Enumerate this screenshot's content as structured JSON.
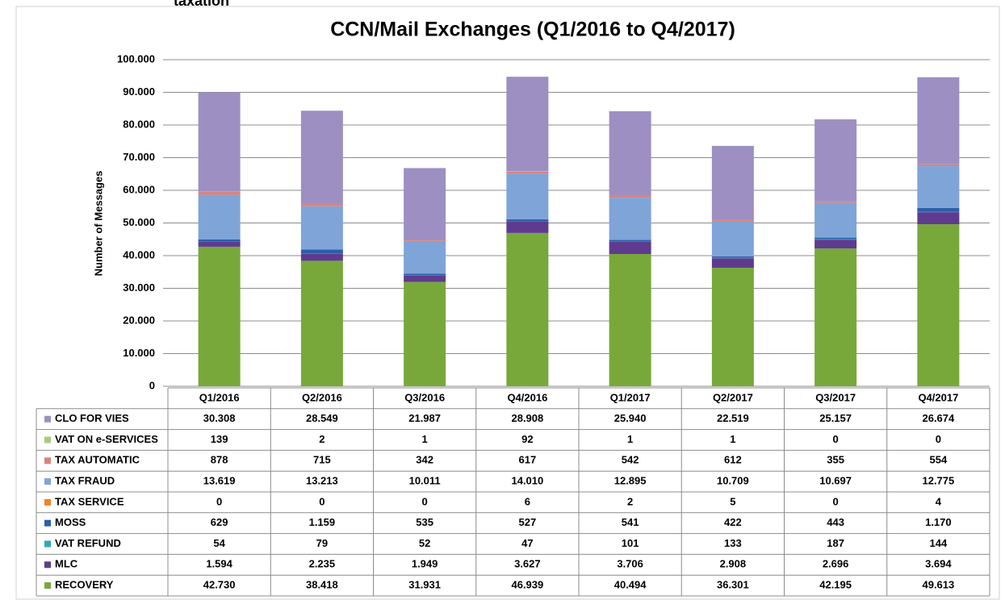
{
  "fragment": "taxation",
  "chart_data": {
    "type": "stacked_bar",
    "title": "CCN/Mail Exchanges (Q1/2016 to Q4/2017)",
    "y_label": "Number of Messages",
    "categories": [
      "Q1/2016",
      "Q2/2016",
      "Q3/2016",
      "Q4/2016",
      "Q1/2017",
      "Q2/2017",
      "Q3/2017",
      "Q4/2017"
    ],
    "ylim": [
      0,
      100000
    ],
    "yticks": [
      0,
      {
        "value": 10000,
        "label": "10.000"
      },
      {
        "value": 20000,
        "label": "20.000"
      },
      {
        "value": 30000,
        "label": "30.000"
      },
      {
        "value": 40000,
        "label": "40.000"
      },
      {
        "value": 50000,
        "label": "50.000"
      },
      {
        "value": 60000,
        "label": "60.000"
      },
      {
        "value": 70000,
        "label": "70.000"
      },
      {
        "value": 80000,
        "label": "80.000"
      },
      {
        "value": 90000,
        "label": "90.000"
      },
      {
        "value": 100000,
        "label": "100.000"
      }
    ],
    "grid": true,
    "series": [
      {
        "name": "CLO FOR VIES",
        "color": "#9d8fc2",
        "values": [
          30308,
          28549,
          21987,
          28908,
          25940,
          22519,
          25157,
          26674
        ],
        "value_labels": [
          "30.308",
          "28.549",
          "21.987",
          "28.908",
          "25.940",
          "22.519",
          "25.157",
          "26.674"
        ]
      },
      {
        "name": "VAT ON e-SERVICES",
        "color": "#a8cb7c",
        "values": [
          139,
          2,
          1,
          92,
          1,
          1,
          0,
          0
        ],
        "value_labels": [
          "139",
          "2",
          "1",
          "92",
          "1",
          "1",
          "0",
          "0"
        ]
      },
      {
        "name": "TAX AUTOMATIC",
        "color": "#da827f",
        "values": [
          878,
          715,
          342,
          617,
          542,
          612,
          355,
          554
        ],
        "value_labels": [
          "878",
          "715",
          "342",
          "617",
          "542",
          "612",
          "355",
          "554"
        ]
      },
      {
        "name": "TAX FRAUD",
        "color": "#7fa4d8",
        "values": [
          13619,
          13213,
          10011,
          14010,
          12895,
          10709,
          10697,
          12775
        ],
        "value_labels": [
          "13.619",
          "13.213",
          "10.011",
          "14.010",
          "12.895",
          "10.709",
          "10.697",
          "12.775"
        ]
      },
      {
        "name": "TAX SERVICE",
        "color": "#f0822a",
        "values": [
          0,
          0,
          0,
          6,
          2,
          5,
          0,
          4
        ],
        "value_labels": [
          "0",
          "0",
          "0",
          "6",
          "2",
          "5",
          "0",
          "4"
        ]
      },
      {
        "name": "MOSS",
        "color": "#2b5fa8",
        "values": [
          629,
          1159,
          535,
          527,
          541,
          422,
          443,
          1170
        ],
        "value_labels": [
          "629",
          "1.159",
          "535",
          "527",
          "541",
          "422",
          "443",
          "1.170"
        ]
      },
      {
        "name": "VAT REFUND",
        "color": "#33a4c0",
        "values": [
          54,
          79,
          52,
          47,
          101,
          133,
          187,
          144
        ],
        "value_labels": [
          "54",
          "79",
          "52",
          "47",
          "101",
          "133",
          "187",
          "144"
        ]
      },
      {
        "name": "MLC",
        "color": "#5e3b8f",
        "values": [
          1594,
          2235,
          1949,
          3627,
          3706,
          2908,
          2696,
          3694
        ],
        "value_labels": [
          "1.594",
          "2.235",
          "1.949",
          "3.627",
          "3.706",
          "2.908",
          "2.696",
          "3.694"
        ]
      },
      {
        "name": "RECOVERY",
        "color": "#78a83a",
        "values": [
          42730,
          38418,
          31931,
          46939,
          40494,
          36301,
          42195,
          49613
        ],
        "value_labels": [
          "42.730",
          "38.418",
          "31.931",
          "46.939",
          "40.494",
          "36.301",
          "42.195",
          "49.613"
        ]
      }
    ]
  }
}
